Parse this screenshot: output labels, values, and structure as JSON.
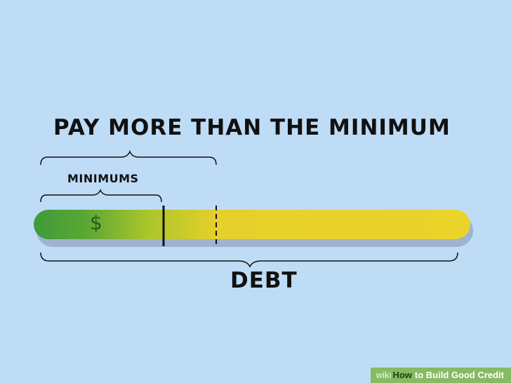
{
  "illustration": {
    "title": "PAY MORE THAN THE MINIMUM",
    "minimums_label": "MINIMUMS",
    "debt_label": "DEBT",
    "currency_symbol": "$",
    "colors": {
      "background": "#bfdcf6",
      "bar_green": "#3f9a3a",
      "bar_yellow": "#e9d22a",
      "bar_shadow": "#9fb3cf",
      "ink": "#111111"
    }
  },
  "watermark": {
    "wiki": "wiki",
    "how": "How",
    "article_title": "to Build Good Credit"
  }
}
